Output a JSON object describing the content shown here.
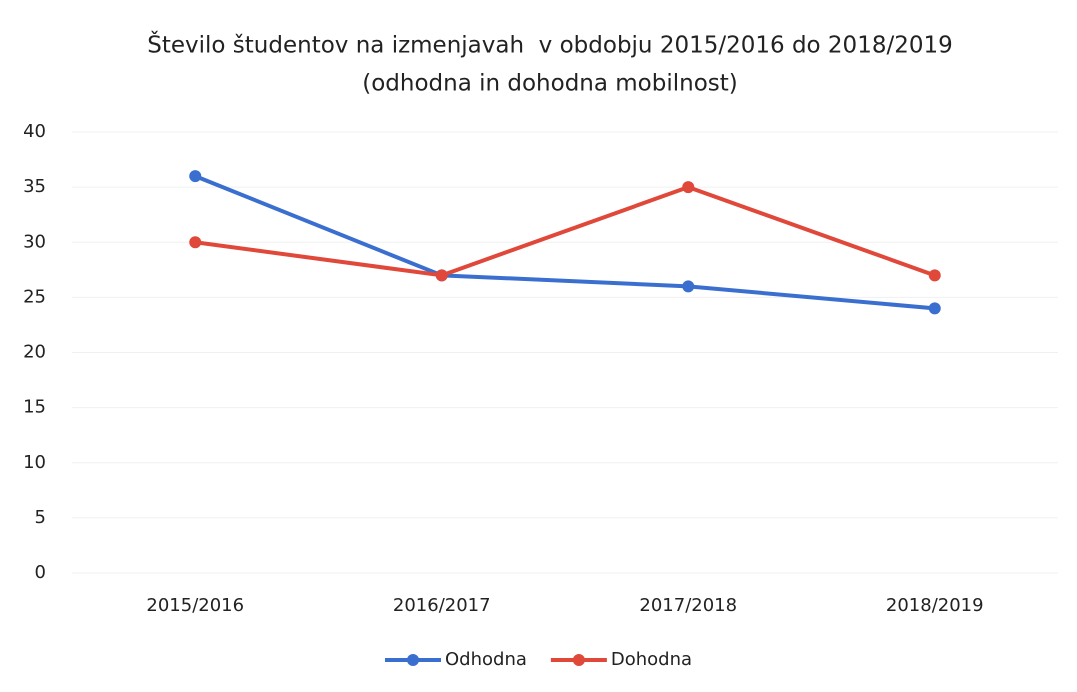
{
  "chart_data": {
    "type": "line",
    "title": "Število študentov na izmenjavah  v obdobju 2015/2016 do 2018/2019",
    "subtitle": "(odhodna in dohodna mobilnost)",
    "categories": [
      "2015/2016",
      "2016/2017",
      "2017/2018",
      "2018/2019"
    ],
    "series": [
      {
        "name": "Odhodna",
        "color": "#3b6fcf",
        "values": [
          36,
          27,
          26,
          24
        ]
      },
      {
        "name": "Dohodna",
        "color": "#e0483a",
        "values": [
          30,
          27,
          35,
          27
        ]
      }
    ],
    "ylim": [
      0,
      40
    ],
    "yticks": [
      0,
      5,
      10,
      15,
      20,
      25,
      30,
      35,
      40
    ],
    "grid": true,
    "legend": "bottom"
  }
}
